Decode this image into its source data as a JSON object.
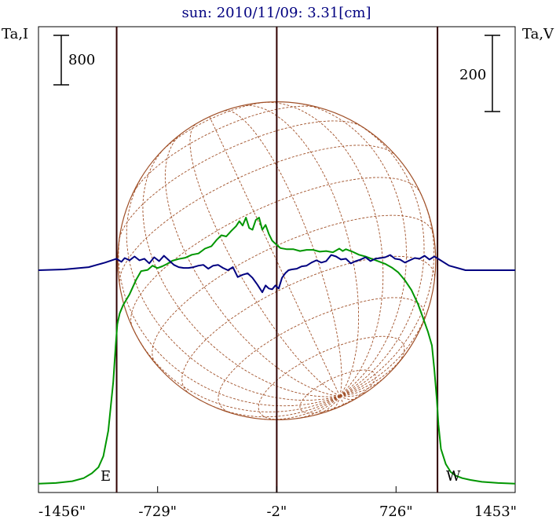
{
  "chart_data": {
    "type": "line",
    "title": "sun: 2010/11/09: 3.31[cm]",
    "ylabel_left": "Ta,I",
    "ylabel_right": "Ta,V",
    "scale_bar_left": "800",
    "scale_bar_right": "200",
    "xlabel": "",
    "x_tick_labels": [
      "-1456\"",
      "-729\"",
      "-2\"",
      "726\"",
      "1453\""
    ],
    "x_ticks_arcsec": [
      -1456,
      -729,
      -2,
      726,
      1453
    ],
    "xlim": [
      -1456,
      1453
    ],
    "limb_labels": {
      "east": "E",
      "west": "W"
    },
    "limb_positions_arcsec": [
      -979,
      979
    ],
    "center_arcsec": -2,
    "solar_disk_radius_arcsec": 970,
    "colors": {
      "intensity": "#009600",
      "polarization": "#000080",
      "title": "#000080",
      "grid": "#a05028",
      "marker_lines": "#300000",
      "axes": "#000000"
    },
    "series": [
      {
        "name": "I",
        "color": "#009600",
        "x": [
          -1456,
          -1350,
          -1250,
          -1180,
          -1130,
          -1090,
          -1060,
          -1030,
          -1000,
          -985,
          -975,
          -960,
          -940,
          -900,
          -860,
          -830,
          -790,
          -760,
          -730,
          -700,
          -670,
          -640,
          -600,
          -560,
          -520,
          -480,
          -440,
          -400,
          -370,
          -340,
          -310,
          -280,
          -250,
          -230,
          -210,
          -190,
          -170,
          -150,
          -130,
          -110,
          -90,
          -70,
          -50,
          -30,
          -10,
          20,
          60,
          100,
          140,
          180,
          220,
          260,
          300,
          340,
          380,
          400,
          420,
          460,
          500,
          540,
          580,
          620,
          660,
          700,
          740,
          780,
          820,
          860,
          890,
          920,
          945,
          960,
          975,
          985,
          1000,
          1030,
          1060,
          1090,
          1130,
          1180,
          1250,
          1350,
          1453
        ],
        "y": [
          30,
          40,
          70,
          120,
          200,
          300,
          480,
          900,
          1700,
          2300,
          2650,
          2830,
          2960,
          3140,
          3380,
          3520,
          3540,
          3610,
          3570,
          3600,
          3640,
          3690,
          3720,
          3740,
          3790,
          3810,
          3890,
          3930,
          4030,
          4110,
          4090,
          4180,
          4260,
          4340,
          4270,
          4400,
          4230,
          4200,
          4360,
          4400,
          4200,
          4280,
          4130,
          4020,
          3970,
          3900,
          3880,
          3880,
          3850,
          3870,
          3870,
          3840,
          3850,
          3830,
          3890,
          3850,
          3880,
          3840,
          3790,
          3760,
          3720,
          3680,
          3640,
          3580,
          3500,
          3370,
          3210,
          2980,
          2760,
          2530,
          2300,
          1900,
          1400,
          1000,
          600,
          350,
          220,
          160,
          120,
          90,
          60,
          40,
          30
        ]
      },
      {
        "name": "V",
        "color": "#000080",
        "x": [
          -1456,
          -1300,
          -1150,
          -1050,
          -980,
          -950,
          -930,
          -900,
          -870,
          -840,
          -810,
          -780,
          -750,
          -720,
          -690,
          -660,
          -630,
          -600,
          -570,
          -540,
          -510,
          -480,
          -450,
          -420,
          -390,
          -360,
          -330,
          -300,
          -270,
          -240,
          -210,
          -180,
          -150,
          -120,
          -90,
          -70,
          -50,
          -30,
          -10,
          10,
          30,
          50,
          70,
          90,
          120,
          150,
          180,
          210,
          240,
          270,
          300,
          330,
          360,
          390,
          420,
          450,
          480,
          510,
          540,
          570,
          600,
          630,
          660,
          690,
          720,
          750,
          780,
          810,
          840,
          870,
          900,
          930,
          960,
          990,
          1050,
          1150,
          1300,
          1453
        ],
        "y": [
          0,
          2,
          8,
          20,
          30,
          22,
          32,
          26,
          36,
          26,
          30,
          18,
          34,
          24,
          38,
          26,
          14,
          8,
          6,
          6,
          8,
          12,
          14,
          4,
          12,
          14,
          6,
          0,
          8,
          -18,
          -12,
          -8,
          -20,
          -38,
          -58,
          -40,
          -48,
          -50,
          -40,
          -48,
          -20,
          -8,
          0,
          2,
          4,
          10,
          12,
          20,
          26,
          20,
          24,
          40,
          36,
          28,
          30,
          18,
          24,
          28,
          34,
          24,
          30,
          32,
          34,
          40,
          30,
          28,
          20,
          26,
          32,
          30,
          38,
          28,
          36,
          28,
          12,
          0,
          0,
          0
        ]
      }
    ],
    "legend": "none",
    "grid": "heliographic-grid-on-disk"
  }
}
